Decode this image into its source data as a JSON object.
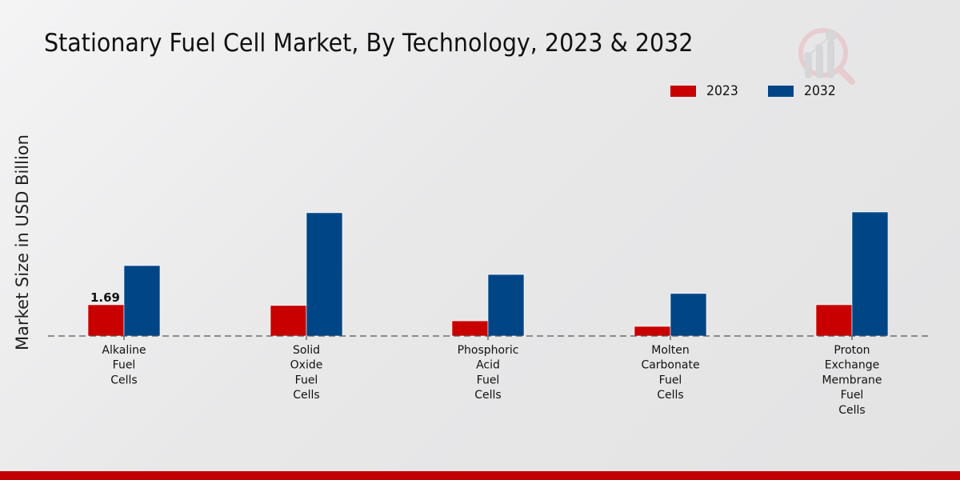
{
  "chart_data": {
    "type": "bar",
    "title": "Stationary Fuel Cell Market, By Technology, 2023 & 2032",
    "xlabel": "",
    "ylabel": "Market Size in USD Billion",
    "categories": [
      [
        "Alkaline",
        "Fuel",
        "Cells"
      ],
      [
        "Solid",
        "Oxide",
        "Fuel",
        "Cells"
      ],
      [
        "Phosphoric",
        "Acid",
        "Fuel",
        "Cells"
      ],
      [
        "Molten",
        "Carbonate",
        "Fuel",
        "Cells"
      ],
      [
        "Proton",
        "Exchange",
        "Membrane",
        "Fuel",
        "Cells"
      ]
    ],
    "series": [
      {
        "name": "2023",
        "color": "#c80000",
        "values": [
          1.69,
          1.65,
          0.82,
          0.52,
          1.69
        ]
      },
      {
        "name": "2032",
        "color": "#004687",
        "values": [
          3.81,
          6.67,
          3.33,
          2.3,
          6.71
        ]
      }
    ],
    "data_labels": [
      {
        "series": 0,
        "index": 0,
        "text": "1.69"
      }
    ],
    "ylim": [
      0,
      8.5
    ],
    "grid": false,
    "legend": "top-right",
    "baseline_style": "dashed"
  },
  "footer_bar_color": "#c00000",
  "watermark_icon": "analytics-magnifier-logo-icon"
}
